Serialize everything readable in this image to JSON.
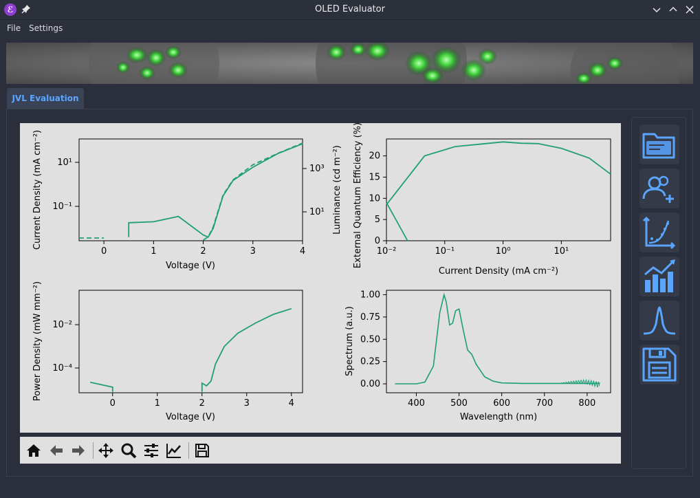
{
  "window": {
    "title": "OLED Evaluator",
    "app_icon_glyph": "ℰ"
  },
  "menu": {
    "items": [
      "File",
      "Settings"
    ]
  },
  "tabs": [
    {
      "label": "JVL Evaluation",
      "active": true
    }
  ],
  "plots": {
    "jvl": {
      "xlabel": "Voltage (V)",
      "ylabel": "Current Density (mA cm⁻²)",
      "y2label": "Luminance (cd m⁻²)",
      "xticks": [
        "0",
        "1",
        "2",
        "3",
        "4"
      ],
      "yticks": [
        "10¹",
        "10⁻¹"
      ],
      "y2ticks": [
        "10³",
        "10¹"
      ]
    },
    "eqe": {
      "xlabel": "Current Density (mA cm⁻²)",
      "ylabel": "External Quantum Efficiency (%)",
      "xticks": [
        "10⁻²",
        "10⁻¹",
        "10⁰",
        "10¹"
      ],
      "yticks": [
        "20",
        "15",
        "10",
        "5",
        "0"
      ]
    },
    "power": {
      "xlabel": "Voltage (V)",
      "ylabel": "Power Density (mW mm⁻²)",
      "xticks": [
        "0",
        "1",
        "2",
        "3",
        "4"
      ],
      "yticks": [
        "10⁻²",
        "10⁻⁴"
      ]
    },
    "spectrum": {
      "xlabel": "Wavelength (nm)",
      "ylabel": "Spectrum (a.u.)",
      "xticks": [
        "400",
        "500",
        "600",
        "700",
        "800"
      ],
      "yticks": [
        "1.00",
        "0.75",
        "0.50",
        "0.25",
        "0.00"
      ]
    }
  },
  "chart_data": [
    {
      "type": "line",
      "xlabel": "Voltage (V)",
      "ylabel": "Current Density (mA cm⁻²)",
      "y2label": "Luminance (cd m⁻²)",
      "xlim": [
        -0.5,
        4
      ],
      "yscale": "log",
      "y2scale": "log",
      "series": [
        {
          "x": [
            0.5,
            0.5,
            1.0,
            1.5,
            2.0,
            2.1,
            2.2,
            2.4,
            2.6,
            3.0,
            3.5,
            4.0
          ],
          "y": [
            0.004,
            0.018,
            0.02,
            0.035,
            0.005,
            0.004,
            0.01,
            0.3,
            1.5,
            6,
            25,
            70
          ]
        },
        {
          "x": [
            -0.5,
            0.0,
            2.0,
            2.1,
            2.2,
            2.4,
            2.6,
            3.0,
            3.5,
            4.0
          ],
          "y2": [
            0.3,
            0.2,
            0.5,
            0.7,
            2,
            60,
            300,
            1500,
            5000,
            15000
          ]
        }
      ]
    },
    {
      "type": "line",
      "xlabel": "Current Density (mA cm⁻²)",
      "ylabel": "External Quantum Efficiency (%)",
      "xscale": "log",
      "xlim": [
        0.01,
        70
      ],
      "ylim": [
        0,
        24
      ],
      "series": [
        {
          "x": [
            0.01,
            0.023
          ],
          "y": [
            9,
            0
          ]
        },
        {
          "x": [
            0.01,
            0.045,
            0.15,
            0.5,
            1.0,
            2.0,
            4.0,
            10,
            30,
            70
          ],
          "y": [
            8.5,
            20,
            22.2,
            22.9,
            23.3,
            23,
            22.9,
            21.8,
            19.5,
            15.7
          ]
        }
      ]
    },
    {
      "type": "line",
      "xlabel": "Voltage (V)",
      "ylabel": "Power Density (mW mm⁻²)",
      "yscale": "log",
      "xlim": [
        -0.75,
        4.25
      ],
      "series": [
        {
          "x": [
            -0.5,
            0.0,
            0.0
          ],
          "y": [
            2.2e-05,
            1.3e-05,
            8e-06
          ]
        },
        {
          "x": [
            2.0,
            2.0,
            2.1,
            2.2,
            2.3,
            2.5,
            2.8,
            3.2,
            3.6,
            4.0
          ],
          "y": [
            8e-06,
            2e-05,
            1.5e-05,
            2.5e-05,
            0.00015,
            0.001,
            0.004,
            0.012,
            0.03,
            0.055
          ]
        }
      ]
    },
    {
      "type": "line",
      "xlabel": "Wavelength (nm)",
      "ylabel": "Spectrum (a.u.)",
      "xlim": [
        330,
        855
      ],
      "ylim": [
        -0.1,
        1.05
      ],
      "series": [
        {
          "x": [
            350,
            400,
            420,
            440,
            455,
            465,
            470,
            478,
            485,
            492,
            500,
            510,
            520,
            530,
            540,
            560,
            580,
            600,
            650,
            700,
            750,
            800,
            830
          ],
          "y": [
            0,
            0,
            0.02,
            0.2,
            0.8,
            1.0,
            0.92,
            0.66,
            0.68,
            0.82,
            0.84,
            0.6,
            0.38,
            0.33,
            0.22,
            0.08,
            0.03,
            0.01,
            0.005,
            0.005,
            0.005,
            0.005,
            0.005
          ]
        }
      ]
    }
  ],
  "toolbar": {
    "icons": [
      "home-icon",
      "back-icon",
      "forward-icon",
      "pan-icon",
      "zoom-icon",
      "configure-icon",
      "edit-curve-icon",
      "save-icon"
    ]
  },
  "sidebar": {
    "buttons": [
      "open-folder-icon",
      "add-users-icon",
      "fit-curve-icon",
      "bar-chart-icon",
      "spectrum-peak-icon",
      "floppy-save-icon"
    ]
  },
  "colors": {
    "accent": "#5aa6ff",
    "line": "#1f9e77",
    "plot_bg": "#e0e0e0",
    "window_bg": "#2a2f3b"
  }
}
